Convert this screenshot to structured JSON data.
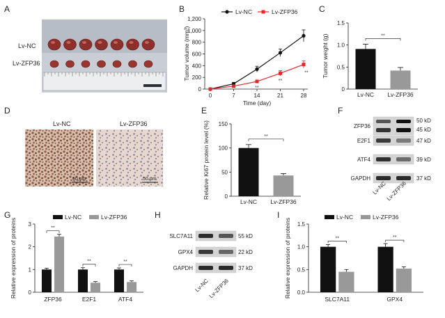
{
  "panels": {
    "A": {
      "letter": "A",
      "rows": [
        {
          "label": "Lv-NC",
          "count": 7
        },
        {
          "label": "Lv-ZFP36",
          "count": 7
        }
      ]
    },
    "D": {
      "letter": "D",
      "images": [
        {
          "label": "Lv-NC",
          "scale": "50 μm"
        },
        {
          "label": "Lv-ZFP36",
          "scale": "50 μm"
        }
      ]
    },
    "F": {
      "letter": "F",
      "bands": [
        {
          "label": "ZFP36",
          "kd": [
            "50 kD",
            "45 kD"
          ]
        },
        {
          "label": "E2F1",
          "kd": [
            "47 kD"
          ]
        },
        {
          "label": "ATF4",
          "kd": [
            "39 kD"
          ]
        },
        {
          "label": "GAPDH",
          "kd": [
            "37 kD"
          ]
        }
      ],
      "lanes": [
        "Lv-NC",
        "Lv-ZFP36"
      ]
    },
    "H": {
      "letter": "H",
      "bands": [
        {
          "label": "SLC7A11",
          "kd": [
            "55 kD"
          ]
        },
        {
          "label": "GPX4",
          "kd": [
            "22 kD"
          ]
        },
        {
          "label": "GAPDH",
          "kd": [
            "37 kD"
          ]
        }
      ],
      "lanes": [
        "Lv-NC",
        "Lv-ZFP36"
      ]
    }
  },
  "chart_data": [
    {
      "panel": "B",
      "type": "line",
      "ylabel": "Tumor volume (mm³)",
      "xlabel": "Time (day)",
      "x": [
        0,
        7,
        14,
        21,
        28
      ],
      "ylim": [
        0,
        1200
      ],
      "yticks": [
        "0",
        "200",
        "400",
        "600",
        "800",
        "1,000",
        "1,200"
      ],
      "xticks": [
        "0",
        "7",
        "14",
        "21",
        "28"
      ],
      "legend_position": "top",
      "series": [
        {
          "name": "Lv-NC",
          "color": "#111111",
          "marker": "circle",
          "values": [
            0,
            90,
            340,
            620,
            910
          ],
          "errors": [
            0,
            25,
            50,
            65,
            100
          ]
        },
        {
          "name": "Lv-ZFP36",
          "color": "#e8262a",
          "marker": "square",
          "values": [
            0,
            50,
            130,
            270,
            420
          ],
          "errors": [
            0,
            15,
            25,
            45,
            60
          ],
          "sig": [
            "",
            "",
            "**",
            "**",
            "**"
          ]
        }
      ]
    },
    {
      "panel": "C",
      "type": "bar",
      "ylabel": "Tumor weight (g)",
      "categories": [
        "Lv-NC",
        "Lv-ZFP36"
      ],
      "ylim": [
        0,
        1.5
      ],
      "yticks": [
        "0",
        "0.5",
        "1.0",
        "1.5"
      ],
      "values": [
        0.91,
        0.42
      ],
      "errors": [
        0.11,
        0.07
      ],
      "colors": [
        "#111111",
        "#999999"
      ],
      "sig": "**"
    },
    {
      "panel": "E",
      "type": "bar",
      "ylabel": "Relative Ki67 protein level (%)",
      "categories": [
        "Lv-NC",
        "Lv-ZFP36"
      ],
      "ylim": [
        0,
        150
      ],
      "yticks": [
        "0",
        "50",
        "100",
        "150"
      ],
      "values": [
        100,
        43
      ],
      "errors": [
        7,
        4
      ],
      "colors": [
        "#111111",
        "#999999"
      ],
      "sig": "**"
    },
    {
      "panel": "G",
      "type": "bar",
      "ylabel": "Relative expression of proteins",
      "categories": [
        "ZFP36",
        "E2F1",
        "ATF4"
      ],
      "ylim": [
        0,
        3
      ],
      "yticks": [
        "0",
        "1",
        "2",
        "3"
      ],
      "legend_position": "top",
      "series": [
        {
          "name": "Lv-NC",
          "color": "#111111",
          "values": [
            1.0,
            1.0,
            1.0
          ],
          "errors": [
            0.06,
            0.08,
            0.07
          ]
        },
        {
          "name": "Lv-ZFP36",
          "color": "#999999",
          "values": [
            2.45,
            0.42,
            0.45
          ],
          "errors": [
            0.1,
            0.05,
            0.05
          ]
        }
      ],
      "sig": [
        "**",
        "**",
        "**"
      ]
    },
    {
      "panel": "I",
      "type": "bar",
      "ylabel": "Relative expression of proteins",
      "categories": [
        "SLC7A11",
        "GPX4"
      ],
      "ylim": [
        0,
        1.5
      ],
      "yticks": [
        "0.0",
        "0.5",
        "1.0",
        "1.5"
      ],
      "legend_position": "top",
      "series": [
        {
          "name": "Lv-NC",
          "color": "#111111",
          "values": [
            1.0,
            1.0
          ],
          "errors": [
            0.05,
            0.07
          ]
        },
        {
          "name": "Lv-ZFP36",
          "color": "#999999",
          "values": [
            0.45,
            0.52
          ],
          "errors": [
            0.05,
            0.04
          ]
        }
      ],
      "sig": [
        "**",
        "**"
      ]
    }
  ],
  "chart_letters": {
    "B": "B",
    "C": "C",
    "E": "E",
    "G": "G",
    "I": "I"
  }
}
